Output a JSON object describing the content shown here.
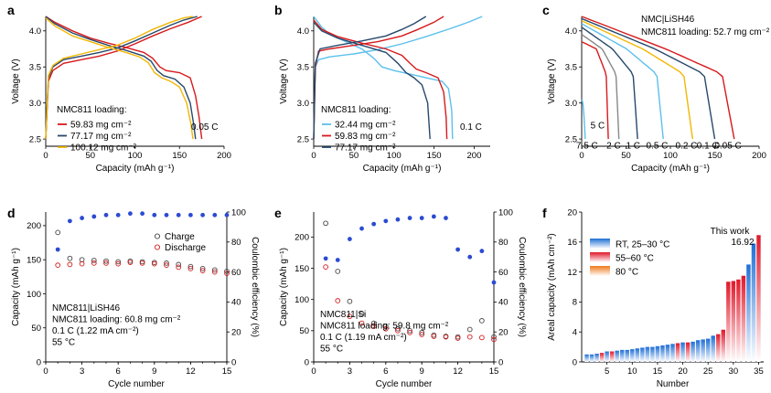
{
  "panels": {
    "a": "a",
    "b": "b",
    "c": "c",
    "d": "d",
    "e": "e",
    "f": "f"
  },
  "chart_data": [
    {
      "id": "a",
      "type": "line",
      "xlabel": "Capacity (mAh g⁻¹)",
      "ylabel": "Voltage (V)",
      "xlim": [
        0,
        200
      ],
      "ylim": [
        2.4,
        4.2
      ],
      "xticks": [
        "0",
        "50",
        "100",
        "150",
        "200"
      ],
      "yticks": [
        "2.5",
        "3.0",
        "3.5",
        "4.0"
      ],
      "legend_title": "NMC811 loading:",
      "annotation": "0.05 C",
      "series": [
        {
          "name": "59.83 mg cm⁻²",
          "color": "#d7191c",
          "charge": [
            [
              0,
              2.5
            ],
            [
              3,
              3.3
            ],
            [
              8,
              3.45
            ],
            [
              20,
              3.55
            ],
            [
              40,
              3.6
            ],
            [
              60,
              3.65
            ],
            [
              80,
              3.72
            ],
            [
              100,
              3.82
            ],
            [
              120,
              3.93
            ],
            [
              140,
              4.03
            ],
            [
              160,
              4.12
            ],
            [
              175,
              4.2
            ]
          ],
          "discharge": [
            [
              0,
              4.2
            ],
            [
              10,
              4.12
            ],
            [
              30,
              4.0
            ],
            [
              50,
              3.9
            ],
            [
              70,
              3.83
            ],
            [
              90,
              3.77
            ],
            [
              110,
              3.7
            ],
            [
              120,
              3.62
            ],
            [
              128,
              3.5
            ],
            [
              135,
              3.45
            ],
            [
              150,
              3.42
            ],
            [
              162,
              3.35
            ],
            [
              168,
              3.1
            ],
            [
              172,
              2.8
            ],
            [
              175,
              2.5
            ]
          ]
        },
        {
          "name": "77.17 mg cm⁻²",
          "color": "#27486b",
          "charge": [
            [
              0,
              2.5
            ],
            [
              3,
              3.35
            ],
            [
              8,
              3.5
            ],
            [
              20,
              3.6
            ],
            [
              40,
              3.65
            ],
            [
              60,
              3.7
            ],
            [
              80,
              3.76
            ],
            [
              100,
              3.86
            ],
            [
              120,
              3.97
            ],
            [
              140,
              4.08
            ],
            [
              155,
              4.15
            ],
            [
              170,
              4.2
            ]
          ],
          "discharge": [
            [
              0,
              4.2
            ],
            [
              10,
              4.1
            ],
            [
              30,
              3.97
            ],
            [
              50,
              3.88
            ],
            [
              70,
              3.8
            ],
            [
              90,
              3.73
            ],
            [
              110,
              3.65
            ],
            [
              118,
              3.58
            ],
            [
              125,
              3.45
            ],
            [
              132,
              3.38
            ],
            [
              145,
              3.33
            ],
            [
              155,
              3.22
            ],
            [
              162,
              3.0
            ],
            [
              166,
              2.7
            ],
            [
              168,
              2.5
            ]
          ]
        },
        {
          "name": "100.12 mg cm⁻²",
          "color": "#f2b705",
          "charge": [
            [
              0,
              2.5
            ],
            [
              3,
              3.38
            ],
            [
              8,
              3.52
            ],
            [
              20,
              3.62
            ],
            [
              40,
              3.68
            ],
            [
              60,
              3.74
            ],
            [
              80,
              3.8
            ],
            [
              100,
              3.9
            ],
            [
              120,
              4.02
            ],
            [
              140,
              4.12
            ],
            [
              155,
              4.18
            ],
            [
              165,
              4.2
            ]
          ],
          "discharge": [
            [
              0,
              4.18
            ],
            [
              10,
              4.07
            ],
            [
              30,
              3.93
            ],
            [
              50,
              3.85
            ],
            [
              70,
              3.77
            ],
            [
              90,
              3.7
            ],
            [
              105,
              3.64
            ],
            [
              115,
              3.56
            ],
            [
              122,
              3.42
            ],
            [
              130,
              3.35
            ],
            [
              140,
              3.3
            ],
            [
              150,
              3.22
            ],
            [
              158,
              3.0
            ],
            [
              163,
              2.7
            ],
            [
              165,
              2.5
            ]
          ]
        }
      ]
    },
    {
      "id": "b",
      "type": "line",
      "xlabel": "Capacity (mAh g⁻¹)",
      "ylabel": "Voltage (V)",
      "xlim": [
        0,
        220
      ],
      "ylim": [
        2.4,
        4.2
      ],
      "xticks": [
        "0",
        "50",
        "100",
        "150",
        "200"
      ],
      "yticks": [
        "2.5",
        "3.0",
        "3.5",
        "4.0"
      ],
      "legend_title": "NMC811 loading:",
      "annotation": "0.1 C",
      "series": [
        {
          "name": "32.44 mg cm⁻²",
          "color": "#5bc0eb",
          "charge": [
            [
              0,
              2.5
            ],
            [
              2,
              3.5
            ],
            [
              6,
              3.6
            ],
            [
              20,
              3.64
            ],
            [
              50,
              3.68
            ],
            [
              80,
              3.74
            ],
            [
              110,
              3.82
            ],
            [
              140,
              3.92
            ],
            [
              170,
              4.03
            ],
            [
              195,
              4.13
            ],
            [
              210,
              4.2
            ]
          ],
          "discharge": [
            [
              0,
              4.2
            ],
            [
              10,
              4.05
            ],
            [
              20,
              3.95
            ],
            [
              40,
              3.85
            ],
            [
              60,
              3.75
            ],
            [
              75,
              3.62
            ],
            [
              85,
              3.5
            ],
            [
              100,
              3.45
            ],
            [
              120,
              3.4
            ],
            [
              140,
              3.35
            ],
            [
              160,
              3.3
            ],
            [
              168,
              3.2
            ],
            [
              172,
              2.9
            ],
            [
              173,
              2.5
            ]
          ]
        },
        {
          "name": "59.83 mg cm⁻²",
          "color": "#d7191c",
          "charge": [
            [
              0,
              2.5
            ],
            [
              2,
              3.5
            ],
            [
              6,
              3.72
            ],
            [
              20,
              3.75
            ],
            [
              50,
              3.8
            ],
            [
              80,
              3.85
            ],
            [
              110,
              3.93
            ],
            [
              130,
              4.02
            ],
            [
              150,
              4.12
            ],
            [
              162,
              4.2
            ]
          ],
          "discharge": [
            [
              0,
              4.15
            ],
            [
              10,
              4.02
            ],
            [
              30,
              3.92
            ],
            [
              60,
              3.83
            ],
            [
              90,
              3.75
            ],
            [
              110,
              3.66
            ],
            [
              120,
              3.55
            ],
            [
              128,
              3.47
            ],
            [
              140,
              3.42
            ],
            [
              155,
              3.35
            ],
            [
              162,
              3.15
            ],
            [
              165,
              2.8
            ],
            [
              166,
              2.5
            ]
          ]
        },
        {
          "name": "77.17 mg cm⁻²",
          "color": "#27486b",
          "charge": [
            [
              0,
              2.5
            ],
            [
              2,
              3.55
            ],
            [
              8,
              3.75
            ],
            [
              30,
              3.8
            ],
            [
              60,
              3.86
            ],
            [
              90,
              3.93
            ],
            [
              110,
              4.02
            ],
            [
              125,
              4.1
            ],
            [
              140,
              4.2
            ]
          ],
          "discharge": [
            [
              0,
              4.12
            ],
            [
              10,
              4.0
            ],
            [
              30,
              3.9
            ],
            [
              60,
              3.8
            ],
            [
              90,
              3.7
            ],
            [
              105,
              3.55
            ],
            [
              115,
              3.42
            ],
            [
              125,
              3.35
            ],
            [
              135,
              3.25
            ],
            [
              142,
              3.0
            ],
            [
              145,
              2.5
            ]
          ]
        }
      ]
    },
    {
      "id": "c",
      "type": "line",
      "xlabel": "Capacity (mAh g⁻¹)",
      "ylabel": "Voltage (V)",
      "xlim": [
        0,
        200
      ],
      "ylim": [
        2.4,
        4.2
      ],
      "xticks": [
        "0",
        "50",
        "100",
        "150",
        "200"
      ],
      "yticks": [
        "2.5",
        "3.0",
        "3.5",
        "4.0"
      ],
      "title1": "NMC|LiSH46",
      "title2": "NMC811 loading: 52.7 mg cm⁻²",
      "series": [
        {
          "name": "0.05 C",
          "color": "#d7191c",
          "label_at": [
            165,
            2.42
          ],
          "end": 172,
          "start": 4.2
        },
        {
          "name": "0.1 C",
          "color": "#27486b",
          "label_at": [
            142,
            2.42
          ],
          "end": 150,
          "start": 4.17
        },
        {
          "name": "0.2 C",
          "color": "#f2b705",
          "label_at": [
            118,
            2.42
          ],
          "end": 125,
          "start": 4.14
        },
        {
          "name": "0.5 C",
          "color": "#5bc0eb",
          "label_at": [
            85,
            2.42
          ],
          "end": 92,
          "start": 4.1
        },
        {
          "name": "1 C",
          "color": "#27486b",
          "label_at": [
            58,
            2.42
          ],
          "end": 63,
          "start": 4.05
        },
        {
          "name": "2 C",
          "color": "#888888",
          "label_at": [
            36,
            2.42
          ],
          "end": 42,
          "start": 3.95
        },
        {
          "name": "5 C",
          "color": "#d7191c",
          "label_at": [
            18,
            2.7
          ],
          "end": 30,
          "start": 3.85
        },
        {
          "name": "7.5 C",
          "color": "#5bc0eb",
          "label_at": [
            6,
            2.42
          ],
          "end": 4,
          "start": 3.05
        }
      ]
    },
    {
      "id": "d",
      "type": "scatter",
      "xlabel": "Cycle number",
      "ylabel": "Capacity (mAh g⁻¹)",
      "y2label": "Coulombic efficiency (%)",
      "xlim": [
        0,
        15
      ],
      "ylim": [
        0,
        220
      ],
      "y2lim": [
        0,
        100
      ],
      "xticks": [
        "0",
        "3",
        "6",
        "9",
        "12",
        "15"
      ],
      "yticks": [
        "0",
        "50",
        "100",
        "150",
        "200"
      ],
      "y2ticks": [
        "0",
        "20",
        "40",
        "60",
        "80",
        "100"
      ],
      "legend": [
        "Charge",
        "Discharge"
      ],
      "notes": [
        "NMC811|LiSH46",
        "NMC811 loading: 60.8 mg cm⁻²",
        "0.1 C (1.22 mA cm⁻²)",
        "55 °C"
      ],
      "x": [
        1,
        2,
        3,
        4,
        5,
        6,
        7,
        8,
        9,
        10,
        11,
        12,
        13,
        14,
        15
      ],
      "charge": [
        190,
        152,
        150,
        149,
        148,
        147,
        148,
        147,
        146,
        145,
        143,
        140,
        137,
        135,
        133
      ],
      "discharge": [
        142,
        143,
        144,
        145,
        145,
        144,
        146,
        145,
        144,
        142,
        139,
        137,
        134,
        132,
        130
      ],
      "ce": [
        75,
        94,
        96,
        97,
        98,
        98,
        99,
        99,
        98,
        98,
        98,
        98,
        98,
        98,
        98
      ]
    },
    {
      "id": "e",
      "type": "scatter",
      "xlabel": "Cycle number",
      "ylabel": "Capacity (mAh g⁻¹)",
      "y2label": "Coulombic efficiency (%)",
      "xlim": [
        0,
        15
      ],
      "ylim": [
        0,
        240
      ],
      "y2lim": [
        0,
        100
      ],
      "xticks": [
        "0",
        "3",
        "6",
        "9",
        "12",
        "15"
      ],
      "yticks": [
        "0",
        "50",
        "100",
        "150",
        "200"
      ],
      "y2ticks": [
        "0",
        "20",
        "40",
        "60",
        "80",
        "100"
      ],
      "notes": [
        "NMC811|Si",
        "NMC811 loading: 59.8 mg cm⁻²",
        "0.1 C (1.19 mA cm⁻²)",
        "55 °C"
      ],
      "x": [
        1,
        2,
        3,
        4,
        5,
        6,
        7,
        8,
        9,
        10,
        11,
        12,
        13,
        14,
        15
      ],
      "charge": [
        222,
        145,
        97,
        77,
        62,
        57,
        53,
        50,
        47,
        43,
        41,
        40,
        52,
        66,
        40
      ],
      "discharge": [
        152,
        98,
        73,
        62,
        57,
        53,
        50,
        47,
        44,
        41,
        40,
        38,
        40,
        39,
        36
      ],
      "ce": [
        69,
        68,
        82,
        89,
        92,
        94,
        95,
        96,
        96,
        97,
        96,
        75,
        70,
        74,
        53
      ]
    },
    {
      "id": "f",
      "type": "bar",
      "xlabel": "Number",
      "ylabel": "Areal capacity (mAh cm⁻²)",
      "xlim": [
        0,
        36
      ],
      "ylim": [
        0,
        20
      ],
      "xticks": [
        "5",
        "10",
        "15",
        "20",
        "25",
        "30",
        "35"
      ],
      "yticks": [
        "0",
        "4",
        "8",
        "12",
        "16",
        "20"
      ],
      "legend": [
        "RT, 25–30 °C",
        "55–60 °C",
        "80 °C"
      ],
      "this_work_label": "This work",
      "this_work_value": "16.92",
      "values": [
        1.0,
        1.0,
        1.1,
        1.2,
        1.4,
        1.4,
        1.5,
        1.6,
        1.6,
        1.7,
        1.8,
        1.9,
        2.0,
        2.0,
        2.1,
        2.2,
        2.3,
        2.4,
        2.5,
        2.6,
        2.6,
        2.7,
        2.9,
        3.0,
        3.1,
        3.5,
        3.7,
        4.3,
        10.7,
        10.8,
        11.0,
        11.5,
        13.0,
        15.8,
        16.92
      ],
      "temperatures": [
        "RT",
        "RT",
        "RT",
        "55",
        "RT",
        "55",
        "RT",
        "RT",
        "RT",
        "RT",
        "RT",
        "RT",
        "RT",
        "RT",
        "RT",
        "RT",
        "RT",
        "RT",
        "55",
        "RT",
        "55",
        "RT",
        "RT",
        "RT",
        "RT",
        "RT",
        "55",
        "55",
        "55",
        "55",
        "55",
        "55",
        "RT",
        "RT",
        "55"
      ]
    }
  ]
}
